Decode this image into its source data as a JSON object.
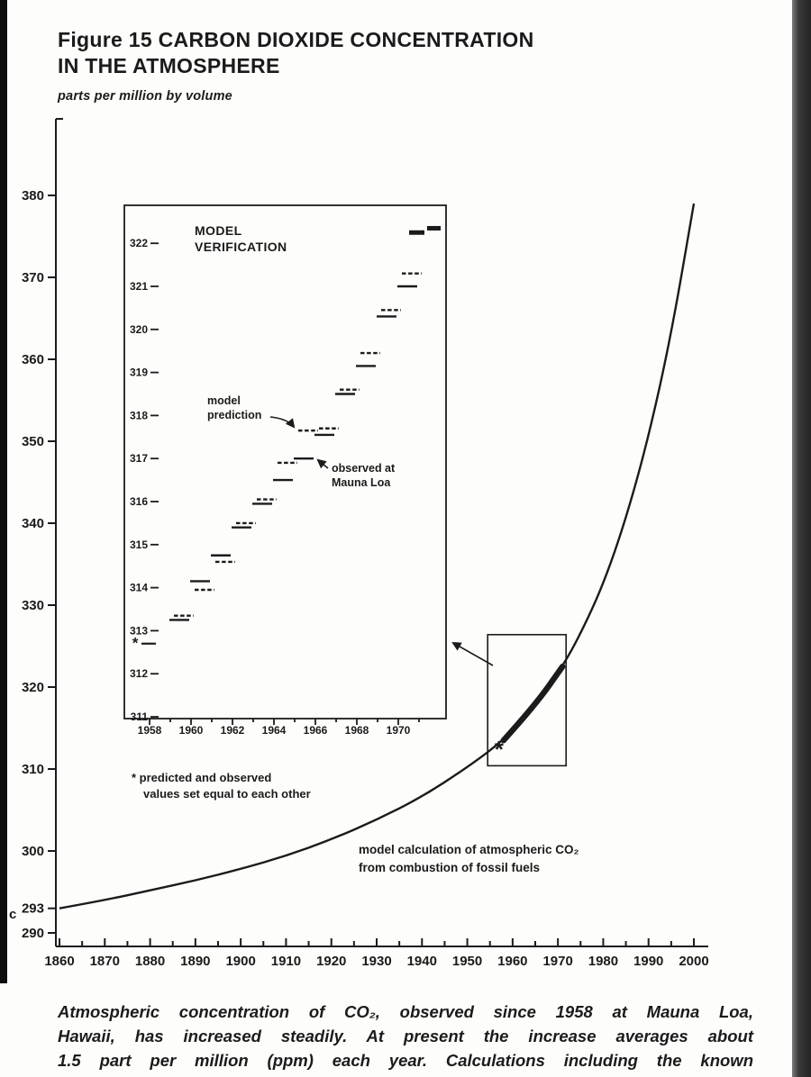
{
  "page": {
    "title_line1": "Figure 15 CARBON DIOXIDE CONCENTRATION",
    "title_line2": "IN THE ATMOSPHERE",
    "units_label": "parts per million by volume",
    "caption_line1": "Atmospheric concentration of CO₂, observed since 1958 at Mauna Loa,",
    "caption_line2": "Hawaii, has increased steadily. At present the increase averages about",
    "caption_line3": "1.5 part per million (ppm) each year. Calculations including the known",
    "edge_artifact": "c"
  },
  "colors": {
    "ink": "#1b1b1b",
    "paper": "#fdfdfb",
    "scan_bar_dark": "#2a2a2a"
  },
  "chart_data": [
    {
      "type": "line",
      "title": "Figure 15 CARBON DIOXIDE CONCENTRATION IN THE ATMOSPHERE",
      "ylabel": "parts per million by volume",
      "xlabel": "",
      "xlim": [
        1860,
        2000
      ],
      "ylim": [
        290,
        382
      ],
      "grid": false,
      "xticks": [
        1860,
        1870,
        1880,
        1890,
        1900,
        1910,
        1920,
        1930,
        1940,
        1950,
        1960,
        1970,
        1980,
        1990,
        2000
      ],
      "yticks": [
        290,
        293,
        300,
        310,
        320,
        330,
        340,
        350,
        360,
        370,
        380
      ],
      "series": [
        {
          "name": "model calculation of atmospheric CO₂ from combustion of fossil fuels",
          "x": [
            1860,
            1870,
            1880,
            1890,
            1900,
            1910,
            1920,
            1930,
            1940,
            1950,
            1958,
            1965,
            1971,
            1975,
            1980,
            1985,
            1990,
            1995,
            2000
          ],
          "y": [
            293,
            294,
            295.2,
            296.4,
            297.8,
            299.4,
            301.4,
            303.8,
            306.6,
            310.2,
            313.5,
            317.8,
            322.5,
            326.5,
            332.5,
            340.5,
            350.5,
            363,
            379
          ]
        }
      ],
      "observed_segment": [
        1958,
        1971
      ],
      "highlight_box": {
        "x1": 1954.5,
        "x2": 1971.8,
        "y1": 310.4,
        "y2": 326.4
      },
      "star": {
        "x": 1957,
        "y": 312.4
      },
      "annotations": {
        "line1": "model calculation of atmospheric CO₂",
        "line2": "from combustion of fossil fuels"
      }
    },
    {
      "type": "line",
      "title_line1": "MODEL",
      "title_line2": "VERIFICATION",
      "xlim": [
        1957.5,
        1971.8
      ],
      "ylim": [
        311,
        322.6
      ],
      "grid": false,
      "xticks": [
        1958,
        1960,
        1962,
        1964,
        1966,
        1968,
        1970
      ],
      "yticks": [
        311,
        312,
        313,
        314,
        315,
        316,
        317,
        318,
        319,
        320,
        321,
        322
      ],
      "years": [
        1959,
        1960,
        1961,
        1962,
        1963,
        1964,
        1965,
        1966,
        1967,
        1968,
        1969,
        1970,
        1971
      ],
      "observed": [
        313.25,
        314.15,
        314.75,
        315.4,
        315.95,
        316.5,
        317.0,
        317.55,
        318.5,
        319.15,
        320.3,
        321.0,
        322.25
      ],
      "predicted": [
        313.35,
        313.95,
        314.6,
        315.5,
        316.05,
        316.9,
        317.65,
        317.7,
        318.6,
        319.45,
        320.45,
        321.3,
        322.35
      ],
      "star": {
        "year": 1958,
        "value": 312.7
      },
      "labels": {
        "model_prediction_line1": "model",
        "model_prediction_line2": "prediction",
        "observed_line1": "observed at",
        "observed_line2": "Mauna Loa"
      },
      "footnote_line1": "* predicted and observed",
      "footnote_line2": "values set equal to each other"
    }
  ]
}
